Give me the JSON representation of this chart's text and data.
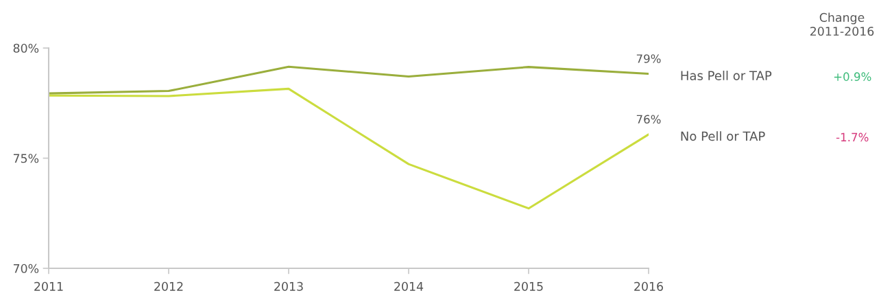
{
  "chart_data": {
    "type": "line",
    "categories": [
      "2011",
      "2012",
      "2013",
      "2014",
      "2015",
      "2016"
    ],
    "series": [
      {
        "name": "Has Pell or TAP",
        "color": "#9aae3c",
        "values": [
          77.94,
          78.05,
          79.15,
          78.71,
          79.14,
          78.83
        ],
        "value_labels": [
          null,
          null,
          null,
          null,
          null,
          "79%"
        ]
      },
      {
        "name": "No Pell or TAP",
        "color": "#cbdc3e",
        "values": [
          77.84,
          77.82,
          78.15,
          74.73,
          72.72,
          76.08
        ],
        "value_labels": [
          null,
          null,
          null,
          null,
          null,
          "76%"
        ]
      }
    ],
    "ylim": [
      70,
      80
    ],
    "yticks": [
      {
        "value": 70,
        "label": "70%"
      },
      {
        "value": 75,
        "label": "75%"
      },
      {
        "value": 80,
        "label": "80%"
      }
    ],
    "annotations": [
      "Change\n2011-2016",
      "+0.9%",
      "-1.7%"
    ],
    "line_style": "solid"
  }
}
